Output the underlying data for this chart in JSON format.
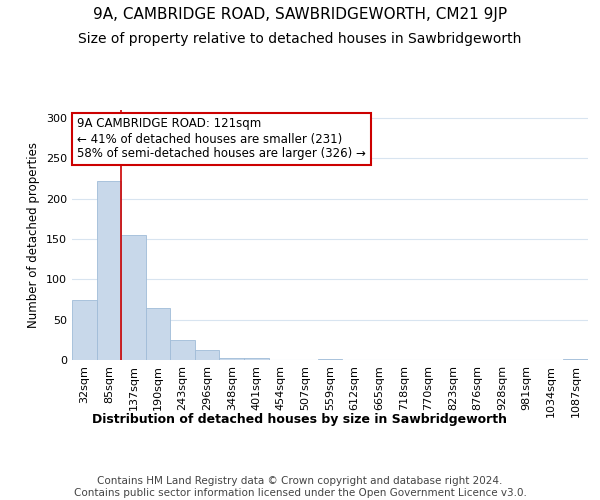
{
  "title1": "9A, CAMBRIDGE ROAD, SAWBRIDGEWORTH, CM21 9JP",
  "title2": "Size of property relative to detached houses in Sawbridgeworth",
  "xlabel": "Distribution of detached houses by size in Sawbridgeworth",
  "ylabel": "Number of detached properties",
  "bin_labels": [
    "32sqm",
    "85sqm",
    "137sqm",
    "190sqm",
    "243sqm",
    "296sqm",
    "348sqm",
    "401sqm",
    "454sqm",
    "507sqm",
    "559sqm",
    "612sqm",
    "665sqm",
    "718sqm",
    "770sqm",
    "823sqm",
    "876sqm",
    "928sqm",
    "981sqm",
    "1034sqm",
    "1087sqm"
  ],
  "bar_values": [
    75,
    222,
    155,
    65,
    25,
    12,
    2,
    2,
    0,
    0,
    1,
    0,
    0,
    0,
    0,
    0,
    0,
    0,
    0,
    0,
    1
  ],
  "bar_color": "#c8d8ea",
  "bar_edge_color": "#a0bcd8",
  "grid_color": "#d8e4f0",
  "bg_color": "#ffffff",
  "fig_bg_color": "#ffffff",
  "annotation_box_text": "9A CAMBRIDGE ROAD: 121sqm\n← 41% of detached houses are smaller (231)\n58% of semi-detached houses are larger (326) →",
  "annotation_box_color": "#ffffff",
  "annotation_box_edge_color": "#cc0000",
  "red_line_x": 1.5,
  "ylim": [
    0,
    310
  ],
  "yticks": [
    0,
    50,
    100,
    150,
    200,
    250,
    300
  ],
  "footnote": "Contains HM Land Registry data © Crown copyright and database right 2024.\nContains public sector information licensed under the Open Government Licence v3.0.",
  "title1_fontsize": 11,
  "title2_fontsize": 10,
  "xlabel_fontsize": 9,
  "ylabel_fontsize": 8.5,
  "tick_fontsize": 8,
  "annot_fontsize": 8.5,
  "footnote_fontsize": 7.5
}
